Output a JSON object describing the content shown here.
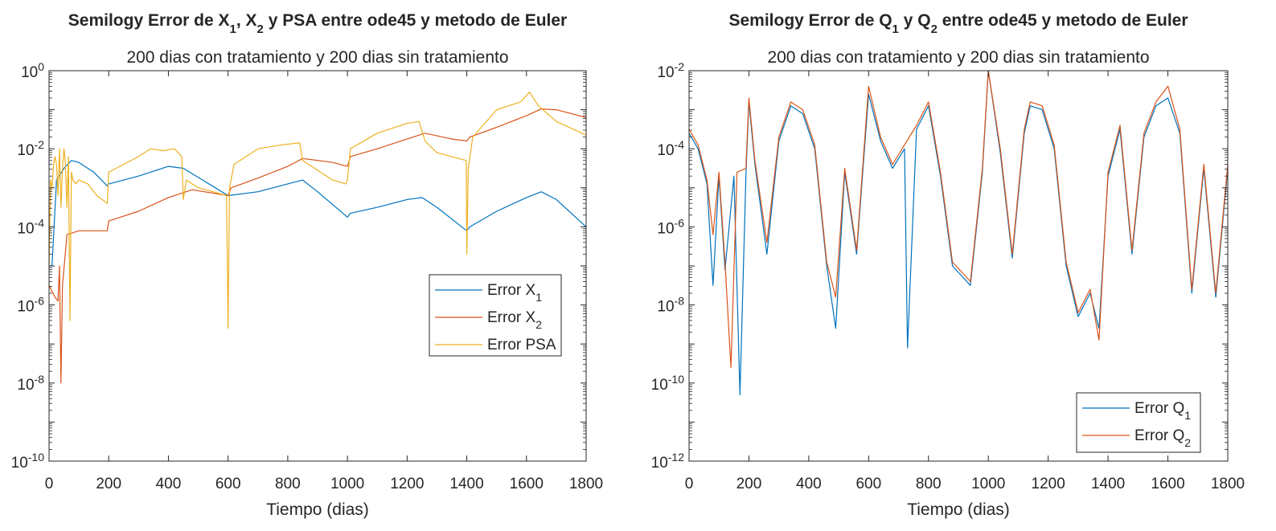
{
  "chart_data": [
    {
      "type": "line",
      "yscale": "log",
      "title": {
        "main": "Semilogy Error de X",
        "sub1": "1",
        "mid1": ", X",
        "sub2": "2",
        "rest": " y PSA entre ode45 y metodo de Euler"
      },
      "subtitle": "200 dias con tratamiento y 200 dias sin tratamiento",
      "xlabel": "Tiempo (dias)",
      "ylabel": "",
      "xlim": [
        0,
        1800
      ],
      "ylim_exp": [
        -10,
        0
      ],
      "xticks": [
        "0",
        "200",
        "400",
        "600",
        "800",
        "1000",
        "1200",
        "1400",
        "1600",
        "1800"
      ],
      "yticks": [
        {
          "base": "10",
          "exp": "-10"
        },
        {
          "base": "10",
          "exp": "-8"
        },
        {
          "base": "10",
          "exp": "-6"
        },
        {
          "base": "10",
          "exp": "-4"
        },
        {
          "base": "10",
          "exp": "-2"
        },
        {
          "base": "10",
          "exp": "0"
        }
      ],
      "legend_position": "center-right",
      "series": [
        {
          "name": {
            "text": "Error X",
            "sub": "1"
          },
          "color": "#0072BD",
          "points": [
            [
              0,
              -5.0
            ],
            [
              10,
              -5.0
            ],
            [
              25,
              -2.8
            ],
            [
              50,
              -2.5
            ],
            [
              75,
              -2.3
            ],
            [
              100,
              -2.35
            ],
            [
              150,
              -2.6
            ],
            [
              195,
              -2.95
            ],
            [
              200,
              -2.9
            ],
            [
              300,
              -2.7
            ],
            [
              400,
              -2.45
            ],
            [
              450,
              -2.5
            ],
            [
              600,
              -3.2
            ],
            [
              700,
              -3.1
            ],
            [
              800,
              -2.9
            ],
            [
              850,
              -2.8
            ],
            [
              900,
              -3.1
            ],
            [
              1000,
              -3.75
            ],
            [
              1010,
              -3.65
            ],
            [
              1100,
              -3.5
            ],
            [
              1200,
              -3.3
            ],
            [
              1250,
              -3.25
            ],
            [
              1300,
              -3.5
            ],
            [
              1400,
              -4.1
            ],
            [
              1410,
              -4.0
            ],
            [
              1500,
              -3.6
            ],
            [
              1600,
              -3.25
            ],
            [
              1650,
              -3.1
            ],
            [
              1700,
              -3.3
            ],
            [
              1800,
              -4.0
            ]
          ]
        },
        {
          "name": {
            "text": "Error X",
            "sub": "2"
          },
          "color": "#D95319",
          "points": [
            [
              0,
              -5.5
            ],
            [
              20,
              -5.8
            ],
            [
              30,
              -5.9
            ],
            [
              35,
              -5.0
            ],
            [
              40,
              -8.0
            ],
            [
              45,
              -5.5
            ],
            [
              60,
              -4.2
            ],
            [
              100,
              -4.1
            ],
            [
              150,
              -4.1
            ],
            [
              195,
              -4.1
            ],
            [
              200,
              -3.85
            ],
            [
              300,
              -3.6
            ],
            [
              400,
              -3.25
            ],
            [
              480,
              -3.05
            ],
            [
              520,
              -3.1
            ],
            [
              600,
              -3.2
            ],
            [
              610,
              -3.0
            ],
            [
              700,
              -2.75
            ],
            [
              800,
              -2.45
            ],
            [
              850,
              -2.25
            ],
            [
              950,
              -2.35
            ],
            [
              1000,
              -2.45
            ],
            [
              1010,
              -2.2
            ],
            [
              1100,
              -2.0
            ],
            [
              1200,
              -1.75
            ],
            [
              1260,
              -1.6
            ],
            [
              1350,
              -1.75
            ],
            [
              1400,
              -1.8
            ],
            [
              1410,
              -1.7
            ],
            [
              1500,
              -1.45
            ],
            [
              1600,
              -1.15
            ],
            [
              1650,
              -0.98
            ],
            [
              1700,
              -1.0
            ],
            [
              1800,
              -1.2
            ]
          ]
        },
        {
          "name": {
            "text": "Error PSA",
            "sub": ""
          },
          "color": "#EDB120",
          "points": [
            [
              0,
              -5.0
            ],
            [
              5,
              -2.8
            ],
            [
              10,
              -3.0
            ],
            [
              15,
              -2.4
            ],
            [
              20,
              -2.2
            ],
            [
              25,
              -2.4
            ],
            [
              30,
              -3.2
            ],
            [
              35,
              -2.0
            ],
            [
              40,
              -3.5
            ],
            [
              45,
              -2.5
            ],
            [
              50,
              -2.0
            ],
            [
              55,
              -2.4
            ],
            [
              60,
              -3.5
            ],
            [
              65,
              -2.2
            ],
            [
              70,
              -6.4
            ],
            [
              75,
              -2.6
            ],
            [
              80,
              -2.8
            ],
            [
              90,
              -2.9
            ],
            [
              100,
              -2.8
            ],
            [
              130,
              -2.9
            ],
            [
              160,
              -3.2
            ],
            [
              195,
              -3.4
            ],
            [
              200,
              -2.6
            ],
            [
              250,
              -2.4
            ],
            [
              300,
              -2.2
            ],
            [
              340,
              -2.0
            ],
            [
              380,
              -2.05
            ],
            [
              420,
              -2.0
            ],
            [
              445,
              -2.2
            ],
            [
              450,
              -3.3
            ],
            [
              460,
              -2.8
            ],
            [
              500,
              -3.0
            ],
            [
              550,
              -3.1
            ],
            [
              595,
              -3.2
            ],
            [
              600,
              -6.6
            ],
            [
              605,
              -3.0
            ],
            [
              620,
              -2.4
            ],
            [
              700,
              -2.0
            ],
            [
              780,
              -1.9
            ],
            [
              840,
              -1.85
            ],
            [
              850,
              -2.3
            ],
            [
              900,
              -2.55
            ],
            [
              950,
              -2.8
            ],
            [
              995,
              -2.9
            ],
            [
              1000,
              -2.8
            ],
            [
              1010,
              -2.0
            ],
            [
              1100,
              -1.6
            ],
            [
              1200,
              -1.35
            ],
            [
              1240,
              -1.3
            ],
            [
              1260,
              -1.8
            ],
            [
              1300,
              -2.1
            ],
            [
              1350,
              -2.2
            ],
            [
              1398,
              -2.3
            ],
            [
              1400,
              -4.7
            ],
            [
              1405,
              -2.5
            ],
            [
              1420,
              -1.7
            ],
            [
              1500,
              -1.0
            ],
            [
              1580,
              -0.8
            ],
            [
              1610,
              -0.55
            ],
            [
              1640,
              -0.9
            ],
            [
              1700,
              -1.3
            ],
            [
              1800,
              -1.65
            ]
          ]
        }
      ]
    },
    {
      "type": "line",
      "yscale": "log",
      "title": {
        "main": "Semilogy Error de Q",
        "sub1": "1",
        "mid1": " y Q",
        "sub2": "2",
        "rest": " entre ode45 y metodo de Euler"
      },
      "subtitle": "200 dias con tratamiento y 200 dias sin tratamiento",
      "xlabel": "Tiempo (dias)",
      "ylabel": "",
      "xlim": [
        0,
        1800
      ],
      "ylim_exp": [
        -12,
        -2
      ],
      "xticks": [
        "0",
        "200",
        "400",
        "600",
        "800",
        "1000",
        "1200",
        "1400",
        "1600",
        "1800"
      ],
      "yticks": [
        {
          "base": "10",
          "exp": "-12"
        },
        {
          "base": "10",
          "exp": "-10"
        },
        {
          "base": "10",
          "exp": "-8"
        },
        {
          "base": "10",
          "exp": "-6"
        },
        {
          "base": "10",
          "exp": "-4"
        },
        {
          "base": "10",
          "exp": "-2"
        }
      ],
      "legend_position": "bottom-right",
      "series": [
        {
          "name": {
            "text": "Error Q",
            "sub": "1"
          },
          "color": "#0072BD",
          "points": [
            [
              0,
              -3.6
            ],
            [
              30,
              -4.0
            ],
            [
              60,
              -4.9
            ],
            [
              80,
              -7.5
            ],
            [
              100,
              -4.7
            ],
            [
              120,
              -7.1
            ],
            [
              150,
              -4.7
            ],
            [
              170,
              -10.3
            ],
            [
              190,
              -4.7
            ],
            [
              200,
              -2.8
            ],
            [
              220,
              -4.4
            ],
            [
              260,
              -6.7
            ],
            [
              300,
              -3.8
            ],
            [
              340,
              -2.9
            ],
            [
              380,
              -3.1
            ],
            [
              420,
              -4.0
            ],
            [
              460,
              -7.0
            ],
            [
              490,
              -8.6
            ],
            [
              520,
              -4.6
            ],
            [
              560,
              -6.7
            ],
            [
              600,
              -2.6
            ],
            [
              640,
              -3.8
            ],
            [
              680,
              -4.5
            ],
            [
              720,
              -4.0
            ],
            [
              730,
              -9.1
            ],
            [
              760,
              -3.5
            ],
            [
              800,
              -2.9
            ],
            [
              840,
              -4.7
            ],
            [
              880,
              -7.0
            ],
            [
              940,
              -7.5
            ],
            [
              980,
              -4.6
            ],
            [
              1000,
              -2.0
            ],
            [
              1040,
              -4.1
            ],
            [
              1080,
              -6.8
            ],
            [
              1120,
              -3.6
            ],
            [
              1140,
              -2.9
            ],
            [
              1180,
              -3.0
            ],
            [
              1220,
              -4.0
            ],
            [
              1260,
              -7.0
            ],
            [
              1300,
              -8.3
            ],
            [
              1340,
              -7.7
            ],
            [
              1370,
              -8.6
            ],
            [
              1400,
              -4.7
            ],
            [
              1440,
              -3.5
            ],
            [
              1480,
              -6.7
            ],
            [
              1520,
              -3.7
            ],
            [
              1560,
              -2.9
            ],
            [
              1600,
              -2.7
            ],
            [
              1640,
              -3.6
            ],
            [
              1680,
              -7.7
            ],
            [
              1720,
              -4.5
            ],
            [
              1760,
              -7.8
            ],
            [
              1800,
              -4.5
            ]
          ]
        },
        {
          "name": {
            "text": "Error Q",
            "sub": "2"
          },
          "color": "#D95319",
          "points": [
            [
              0,
              -3.5
            ],
            [
              30,
              -3.9
            ],
            [
              60,
              -4.8
            ],
            [
              80,
              -6.2
            ],
            [
              100,
              -4.6
            ],
            [
              120,
              -6.9
            ],
            [
              140,
              -9.6
            ],
            [
              160,
              -4.6
            ],
            [
              190,
              -4.5
            ],
            [
              200,
              -2.7
            ],
            [
              220,
              -4.3
            ],
            [
              260,
              -6.4
            ],
            [
              300,
              -3.7
            ],
            [
              340,
              -2.8
            ],
            [
              380,
              -3.0
            ],
            [
              420,
              -3.9
            ],
            [
              460,
              -6.9
            ],
            [
              490,
              -7.8
            ],
            [
              520,
              -4.5
            ],
            [
              560,
              -6.6
            ],
            [
              600,
              -2.4
            ],
            [
              640,
              -3.7
            ],
            [
              680,
              -4.4
            ],
            [
              720,
              -3.9
            ],
            [
              760,
              -3.4
            ],
            [
              800,
              -2.8
            ],
            [
              840,
              -4.6
            ],
            [
              880,
              -6.9
            ],
            [
              940,
              -7.4
            ],
            [
              980,
              -4.5
            ],
            [
              1000,
              -2.0
            ],
            [
              1040,
              -4.0
            ],
            [
              1080,
              -6.7
            ],
            [
              1120,
              -3.5
            ],
            [
              1140,
              -2.8
            ],
            [
              1180,
              -2.9
            ],
            [
              1220,
              -3.9
            ],
            [
              1260,
              -6.9
            ],
            [
              1300,
              -8.2
            ],
            [
              1340,
              -7.6
            ],
            [
              1370,
              -8.9
            ],
            [
              1400,
              -4.6
            ],
            [
              1440,
              -3.4
            ],
            [
              1480,
              -6.6
            ],
            [
              1520,
              -3.6
            ],
            [
              1560,
              -2.8
            ],
            [
              1600,
              -2.4
            ],
            [
              1640,
              -3.5
            ],
            [
              1680,
              -7.6
            ],
            [
              1720,
              -4.4
            ],
            [
              1760,
              -7.7
            ],
            [
              1800,
              -4.4
            ]
          ]
        }
      ]
    }
  ]
}
